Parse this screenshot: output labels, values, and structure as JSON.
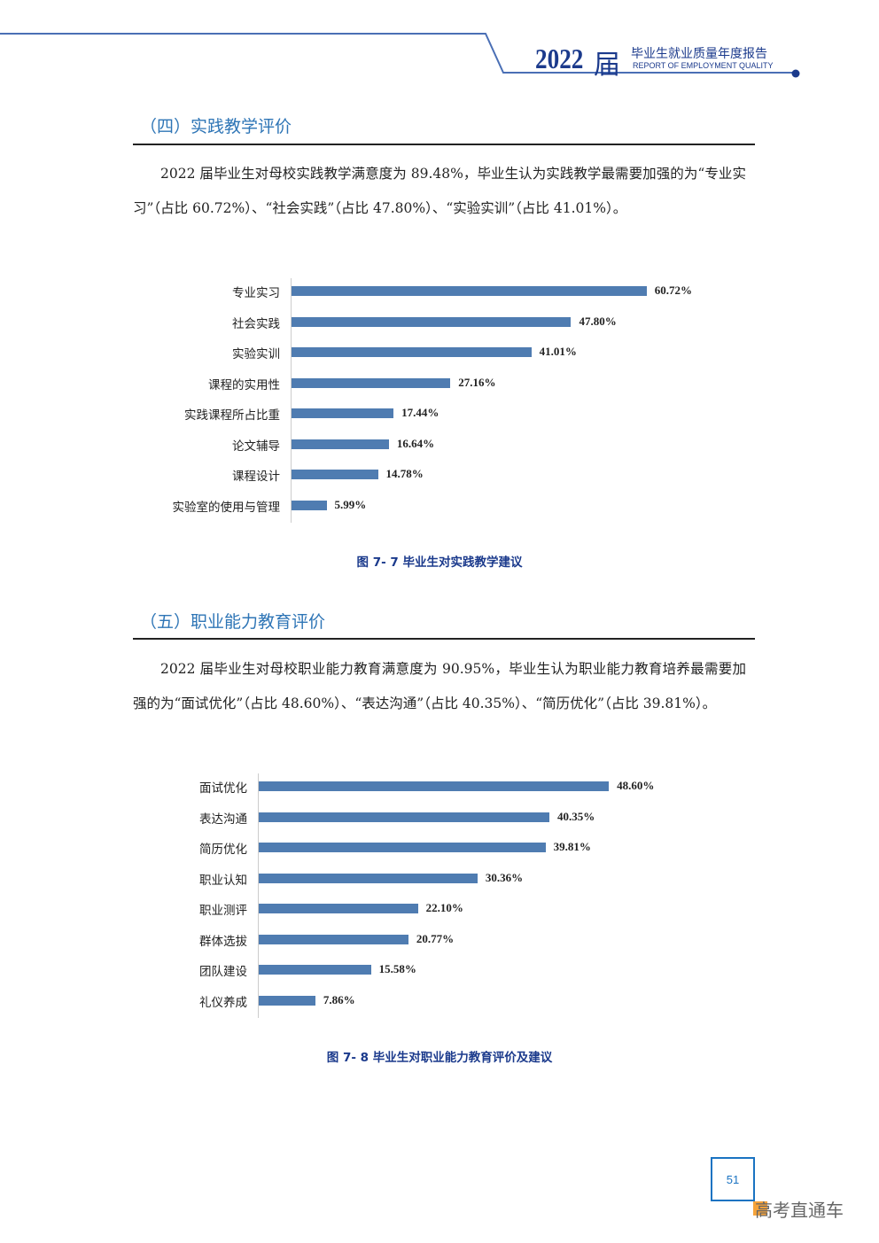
{
  "header": {
    "year": "2022",
    "suffix": "届",
    "title_cn": "毕业生就业质量年度报告",
    "title_en": "REPORT OF EMPLOYMENT QUALITY",
    "accent": "#1b3a8c"
  },
  "sections": [
    {
      "title": "（四）实践教学评价",
      "paragraph": "2022 届毕业生对母校实践教学满意度为 89.48%，毕业生认为实践教学最需要加强的为“专业实习”（占比 60.72%）、“社会实践”（占比 47.80%）、“实验实训”（占比 41.01%）。",
      "caption": "图 7- 7 毕业生对实践教学建议"
    },
    {
      "title": "（五）职业能力教育评价",
      "paragraph": "2022 届毕业生对母校职业能力教育满意度为 90.95%，毕业生认为职业能力教育培养最需要加强的为“面试优化”（占比 48.60%）、“表达沟通”（占比 40.35%）、“简历优化”（占比 39.81%）。",
      "caption": "图 7- 8 毕业生对职业能力教育评价及建议"
    }
  ],
  "chart_data": [
    {
      "type": "bar",
      "orientation": "horizontal",
      "bar_color": "#4f7cb1",
      "categories": [
        "专业实习",
        "社会实践",
        "实验实训",
        "课程的实用性",
        "实践课程所占比重",
        "论文辅导",
        "课程设计",
        "实验室的使用与管理"
      ],
      "values": [
        60.72,
        47.8,
        41.01,
        27.16,
        17.44,
        16.64,
        14.78,
        5.99
      ],
      "labels": [
        "60.72%",
        "47.80%",
        "41.01%",
        "27.16%",
        "17.44%",
        "16.64%",
        "14.78%",
        "5.99%"
      ]
    },
    {
      "type": "bar",
      "orientation": "horizontal",
      "bar_color": "#4f7cb1",
      "categories": [
        "面试优化",
        "表达沟通",
        "简历优化",
        "职业认知",
        "职业测评",
        "群体选拔",
        "团队建设",
        "礼仪养成"
      ],
      "values": [
        48.6,
        40.35,
        39.81,
        30.36,
        22.1,
        20.77,
        15.58,
        7.86
      ],
      "labels": [
        "48.60%",
        "40.35%",
        "39.81%",
        "30.36%",
        "22.10%",
        "20.77%",
        "15.58%",
        "7.86%"
      ]
    }
  ],
  "footer": {
    "page_number": "51",
    "watermark": "高考直通车"
  }
}
